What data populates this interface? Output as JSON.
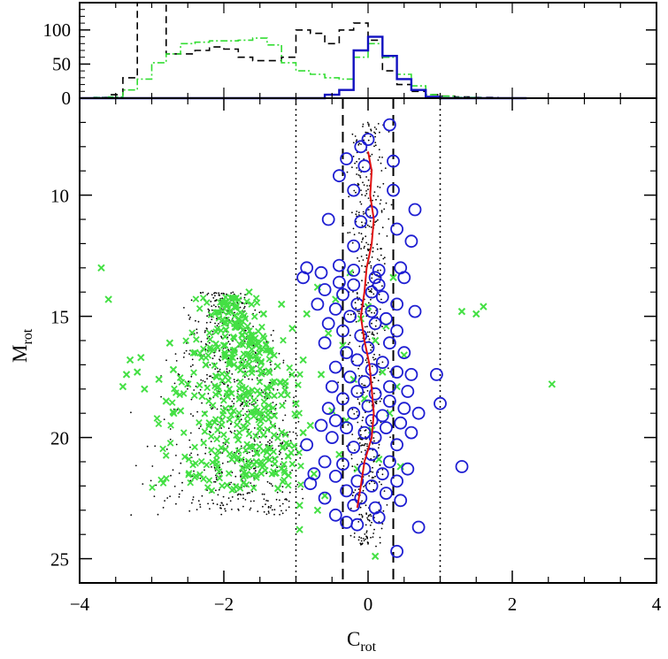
{
  "colors": {
    "frame": "#000000",
    "hist_all": "#000000",
    "hist_green": "#33dd33",
    "hist_blue": "#1010c0",
    "circles": "#1e1ed2",
    "crosses": "#44e044",
    "dots": "#000000",
    "trend": "#e01010"
  },
  "chart_data": [
    {
      "panel": "top",
      "type": "histogram",
      "xlim": [
        -4,
        4
      ],
      "ylim": [
        0,
        140
      ],
      "yticks": [
        "0",
        "50",
        "100"
      ],
      "bins": [
        -3.9,
        -3.7,
        -3.5,
        -3.3,
        -3.1,
        -2.9,
        -2.7,
        -2.5,
        -2.3,
        -2.1,
        -1.9,
        -1.7,
        -1.5,
        -1.3,
        -1.1,
        -0.9,
        -0.7,
        -0.5,
        -0.3,
        -0.1,
        0.1,
        0.3,
        0.5,
        0.7,
        0.9,
        1.1,
        1.3,
        1.5,
        1.7,
        1.9,
        2.1
      ],
      "series": [
        {
          "style": "dashed",
          "values": [
            0,
            1,
            5,
            30,
            145,
            145,
            65,
            65,
            70,
            75,
            72,
            60,
            55,
            55,
            60,
            100,
            95,
            80,
            100,
            110,
            85,
            40,
            20,
            10,
            5,
            3,
            2,
            1,
            1,
            0,
            0
          ]
        },
        {
          "style": "dot-dash",
          "values": [
            0,
            1,
            2,
            12,
            28,
            52,
            65,
            80,
            82,
            84,
            84,
            85,
            88,
            78,
            52,
            40,
            35,
            30,
            28,
            60,
            80,
            60,
            35,
            18,
            5,
            3,
            1,
            1,
            0,
            0,
            0
          ]
        },
        {
          "style": "solid",
          "values": [
            0,
            0,
            0,
            0,
            0,
            0,
            0,
            0,
            0,
            0,
            0,
            0,
            0,
            0,
            0,
            0,
            0,
            5,
            12,
            70,
            90,
            62,
            28,
            12,
            2,
            0,
            0,
            0,
            0,
            0,
            0
          ]
        }
      ]
    },
    {
      "panel": "main",
      "type": "scatter",
      "xlabel_main": "C",
      "xlabel_sub": "rot",
      "ylabel_main": "M",
      "ylabel_sub": "rot",
      "xlim": [
        -4,
        4
      ],
      "ylim": [
        26,
        6
      ],
      "xticks": [
        "−4",
        "−2",
        "0",
        "2",
        "4"
      ],
      "yticks": [
        "10",
        "15",
        "20",
        "25"
      ],
      "vlines": [
        {
          "x": -1.0,
          "style": "dotted"
        },
        {
          "x": -0.35,
          "style": "dashed"
        },
        {
          "x": 0.35,
          "style": "dashed"
        },
        {
          "x": 1.0,
          "style": "dotted"
        }
      ],
      "trend_line": [
        [
          0.0,
          8.2
        ],
        [
          0.05,
          9.0
        ],
        [
          0.03,
          10.0
        ],
        [
          0.08,
          11.0
        ],
        [
          0.05,
          12.0
        ],
        [
          -0.02,
          13.0
        ],
        [
          -0.05,
          14.0
        ],
        [
          -0.1,
          15.0
        ],
        [
          -0.05,
          16.0
        ],
        [
          0.02,
          17.0
        ],
        [
          0.05,
          18.0
        ],
        [
          0.08,
          19.0
        ],
        [
          0.05,
          20.0
        ],
        [
          -0.05,
          21.0
        ],
        [
          -0.1,
          22.0
        ],
        [
          -0.15,
          22.9
        ]
      ],
      "circles": [
        [
          0.3,
          7.1
        ],
        [
          0.0,
          7.7
        ],
        [
          -0.1,
          8.0
        ],
        [
          -0.3,
          8.5
        ],
        [
          0.35,
          8.6
        ],
        [
          -0.05,
          8.8
        ],
        [
          -0.4,
          9.2
        ],
        [
          -0.2,
          9.8
        ],
        [
          0.35,
          9.8
        ],
        [
          0.05,
          10.7
        ],
        [
          0.65,
          10.6
        ],
        [
          -0.55,
          11.0
        ],
        [
          -0.1,
          11.1
        ],
        [
          0.4,
          11.4
        ],
        [
          0.6,
          11.9
        ],
        [
          -0.2,
          12.1
        ],
        [
          -0.4,
          12.9
        ],
        [
          -0.85,
          13.0
        ],
        [
          0.45,
          13.0
        ],
        [
          -0.2,
          13.1
        ],
        [
          0.15,
          13.1
        ],
        [
          -0.65,
          13.2
        ],
        [
          -0.9,
          13.4
        ],
        [
          0.1,
          13.4
        ],
        [
          0.5,
          13.4
        ],
        [
          -0.4,
          13.6
        ],
        [
          -0.2,
          13.7
        ],
        [
          0.15,
          13.7
        ],
        [
          -0.6,
          13.9
        ],
        [
          0.05,
          14.0
        ],
        [
          -0.35,
          14.1
        ],
        [
          0.2,
          14.2
        ],
        [
          -0.7,
          14.5
        ],
        [
          -0.15,
          14.5
        ],
        [
          0.4,
          14.5
        ],
        [
          -0.45,
          14.7
        ],
        [
          0.05,
          14.8
        ],
        [
          0.65,
          14.8
        ],
        [
          -0.25,
          15.0
        ],
        [
          0.25,
          15.1
        ],
        [
          -0.55,
          15.3
        ],
        [
          0.1,
          15.3
        ],
        [
          -0.35,
          15.6
        ],
        [
          0.4,
          15.6
        ],
        [
          -0.1,
          15.8
        ],
        [
          -0.6,
          16.1
        ],
        [
          0.3,
          16.1
        ],
        [
          0.0,
          16.3
        ],
        [
          -0.3,
          16.5
        ],
        [
          0.5,
          16.5
        ],
        [
          -0.15,
          16.8
        ],
        [
          0.2,
          16.9
        ],
        [
          -0.45,
          17.1
        ],
        [
          0.05,
          17.2
        ],
        [
          0.4,
          17.3
        ],
        [
          -0.25,
          17.5
        ],
        [
          0.6,
          17.4
        ],
        [
          0.95,
          17.4
        ],
        [
          -0.05,
          17.7
        ],
        [
          -0.5,
          17.9
        ],
        [
          0.3,
          17.9
        ],
        [
          -0.15,
          18.1
        ],
        [
          0.1,
          18.2
        ],
        [
          0.55,
          18.1
        ],
        [
          -0.35,
          18.4
        ],
        [
          0.3,
          18.5
        ],
        [
          0.0,
          18.7
        ],
        [
          -0.55,
          18.8
        ],
        [
          0.5,
          18.8
        ],
        [
          1.0,
          18.6
        ],
        [
          -0.2,
          19.0
        ],
        [
          0.2,
          19.1
        ],
        [
          0.7,
          19.0
        ],
        [
          -0.45,
          19.3
        ],
        [
          0.05,
          19.3
        ],
        [
          0.45,
          19.4
        ],
        [
          -0.65,
          19.5
        ],
        [
          -0.3,
          19.6
        ],
        [
          0.25,
          19.6
        ],
        [
          -0.05,
          19.8
        ],
        [
          0.6,
          19.8
        ],
        [
          -0.5,
          20.0
        ],
        [
          0.1,
          20.0
        ],
        [
          -0.85,
          20.3
        ],
        [
          0.4,
          20.3
        ],
        [
          -0.2,
          20.4
        ],
        [
          0.05,
          20.7
        ],
        [
          -0.6,
          21.0
        ],
        [
          0.3,
          21.0
        ],
        [
          -0.35,
          21.1
        ],
        [
          1.3,
          21.2
        ],
        [
          -0.05,
          21.3
        ],
        [
          0.55,
          21.3
        ],
        [
          -0.75,
          21.5
        ],
        [
          0.2,
          21.5
        ],
        [
          -0.45,
          21.6
        ],
        [
          -0.15,
          21.8
        ],
        [
          0.4,
          21.8
        ],
        [
          -0.8,
          21.9
        ],
        [
          0.05,
          22.0
        ],
        [
          -0.3,
          22.2
        ],
        [
          0.25,
          22.3
        ],
        [
          -0.6,
          22.5
        ],
        [
          -0.1,
          22.5
        ],
        [
          0.45,
          22.6
        ],
        [
          -0.2,
          22.8
        ],
        [
          0.1,
          22.9
        ],
        [
          -0.45,
          23.2
        ],
        [
          0.15,
          23.3
        ],
        [
          -0.3,
          23.5
        ],
        [
          -0.15,
          23.6
        ],
        [
          0.7,
          23.7
        ],
        [
          0.4,
          24.7
        ]
      ],
      "crosses": [
        [
          -3.7,
          13.0
        ],
        [
          -3.6,
          14.3
        ],
        [
          -3.3,
          16.8
        ],
        [
          -3.35,
          17.4
        ],
        [
          -3.4,
          17.9
        ],
        [
          -3.2,
          17.3
        ],
        [
          -3.1,
          18.0
        ],
        [
          -3.15,
          16.7
        ],
        [
          -2.9,
          17.6
        ],
        [
          -2.8,
          18.5
        ],
        [
          -2.7,
          17.2
        ],
        [
          -2.6,
          18.9
        ],
        [
          -2.5,
          17.8
        ],
        [
          -2.4,
          16.5
        ],
        [
          -2.3,
          18.3
        ],
        [
          -2.2,
          19.4
        ],
        [
          -2.1,
          17.5
        ],
        [
          -2.0,
          16.2
        ],
        [
          -1.9,
          18.8
        ],
        [
          -1.85,
          15.3
        ],
        [
          -1.8,
          20.1
        ],
        [
          -1.75,
          17.0
        ],
        [
          -1.7,
          19.6
        ],
        [
          -1.6,
          15.8
        ],
        [
          -1.55,
          21.0
        ],
        [
          -1.5,
          18.2
        ],
        [
          -1.45,
          14.9
        ],
        [
          -1.4,
          20.6
        ],
        [
          -1.35,
          16.4
        ],
        [
          -1.3,
          19.1
        ],
        [
          -1.25,
          22.1
        ],
        [
          -1.2,
          14.5
        ],
        [
          -1.15,
          17.7
        ],
        [
          -1.1,
          20.3
        ],
        [
          -1.05,
          15.5
        ],
        [
          -1.0,
          18.6
        ],
        [
          -0.95,
          22.8
        ],
        [
          -0.9,
          16.8
        ],
        [
          -0.85,
          14.9
        ],
        [
          -0.8,
          19.5
        ],
        [
          -0.75,
          21.5
        ],
        [
          -0.7,
          13.8
        ],
        [
          -0.65,
          17.4
        ],
        [
          -0.6,
          22.4
        ],
        [
          -0.55,
          15.7
        ],
        [
          -0.5,
          18.9
        ],
        [
          -0.45,
          14.3
        ],
        [
          -0.4,
          20.7
        ],
        [
          -0.35,
          16.2
        ],
        [
          -0.3,
          19.3
        ],
        [
          -0.25,
          13.2
        ],
        [
          -0.2,
          17.6
        ],
        [
          -0.15,
          21.3
        ],
        [
          -0.1,
          15.1
        ],
        [
          -0.05,
          18.4
        ],
        [
          0.0,
          14.6
        ],
        [
          0.05,
          19.7
        ],
        [
          0.1,
          16.0
        ],
        [
          0.15,
          20.9
        ],
        [
          0.2,
          17.3
        ],
        [
          0.25,
          15.4
        ],
        [
          0.3,
          19.0
        ],
        [
          0.35,
          13.4
        ],
        [
          0.4,
          17.9
        ],
        [
          0.45,
          21.2
        ],
        [
          0.5,
          16.6
        ],
        [
          -0.9,
          19.8
        ],
        [
          -1.95,
          18.3
        ],
        [
          -2.25,
          17.0
        ],
        [
          -2.75,
          16.1
        ],
        [
          -1.65,
          14.0
        ],
        [
          0.1,
          24.9
        ],
        [
          1.5,
          14.9
        ],
        [
          1.6,
          14.6
        ],
        [
          1.3,
          14.8
        ],
        [
          2.55,
          17.8
        ],
        [
          -0.7,
          23.0
        ],
        [
          -0.95,
          23.8
        ]
      ],
      "dots_per_cloud": 900
    }
  ]
}
